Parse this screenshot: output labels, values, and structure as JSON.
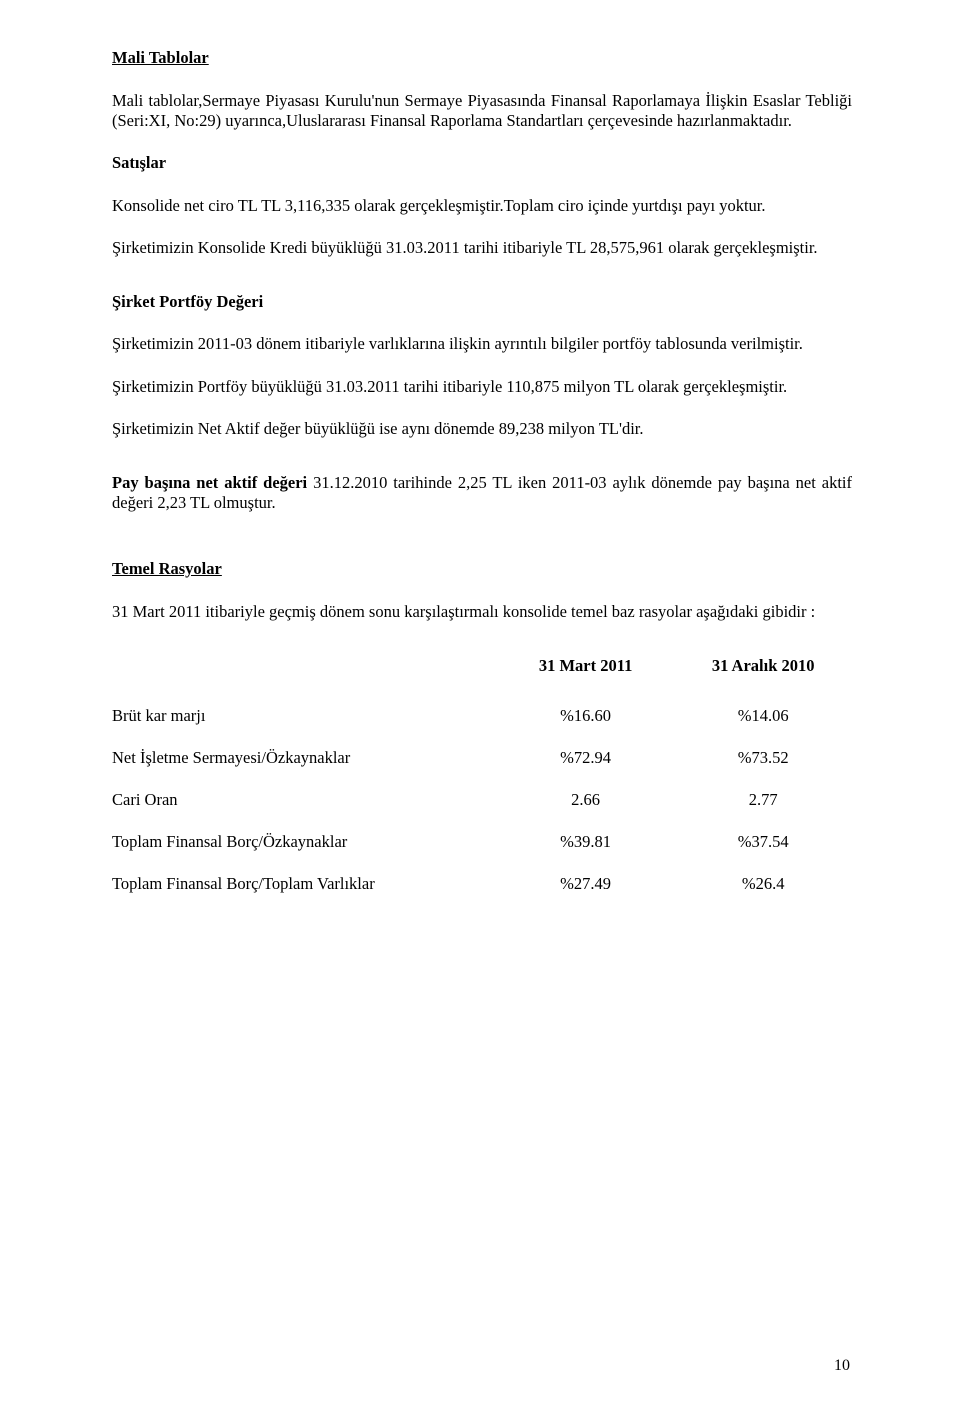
{
  "sections": {
    "mali_tablolar": {
      "title": "Mali Tablolar",
      "p1": "Mali tablolar,Sermaye Piyasası Kurulu'nun Sermaye Piyasasında Finansal Raporlamaya İlişkin Esaslar Tebliği (Seri:XI, No:29) uyarınca,Uluslararası Finansal Raporlama Standartları çerçevesinde hazırlanmaktadır."
    },
    "satislar": {
      "title": "Satışlar",
      "p1": "Konsolide net ciro TL TL 3,116,335 olarak gerçekleşmiştir.Toplam ciro içinde yurtdışı payı yoktur.",
      "p2": "Şirketimizin Konsolide Kredi büyüklüğü 31.03.2011 tarihi itibariyle TL 28,575,961 olarak gerçekleşmiştir."
    },
    "portfoy": {
      "title": "Şirket Portföy Değeri",
      "p1": "Şirketimizin 2011-03 dönem itibariyle  varlıklarına ilişkin ayrıntılı bilgiler portföy tablosunda verilmiştir.",
      "p2": "Şirketimizin Portföy büyüklüğü 31.03.2011 tarihi itibariyle 110,875 milyon TL olarak gerçekleşmiştir.",
      "p3": "Şirketimizin Net Aktif değer büyüklüğü  ise aynı dönemde 89,238  milyon  TL'dir."
    },
    "pay": {
      "label": "Pay başına net aktif değeri",
      "rest": " 31.12.2010 tarihinde 2,25 TL iken 2011-03 aylık dönemde pay başına net aktif değeri  2,23 TL olmuştur."
    },
    "rasyolar": {
      "title": "Temel Rasyolar",
      "intro": "31 Mart 2011 itibariyle geçmiş dönem sonu karşılaştırmalı konsolide temel baz rasyolar aşağıdaki gibidir :",
      "col1": "31 Mart 2011",
      "col2": "31 Aralık 2010",
      "rows": [
        {
          "label": "Brüt kar marjı",
          "v1": "%16.60",
          "v2": "%14.06"
        },
        {
          "label": "Net İşletme Sermayesi/Özkaynaklar",
          "v1": "%72.94",
          "v2": "%73.52"
        },
        {
          "label": "Cari Oran",
          "v1": "2.66",
          "v2": "2.77"
        },
        {
          "label": "Toplam Finansal Borç/Özkaynaklar",
          "v1": "%39.81",
          "v2": "%37.54"
        },
        {
          "label": "Toplam Finansal Borç/Toplam Varlıklar",
          "v1": "%27.49",
          "v2": "%26.4"
        }
      ]
    }
  },
  "page_number": "10",
  "colors": {
    "text": "#000000",
    "background": "#ffffff"
  },
  "typography": {
    "body_pt": 12.4,
    "family": "Times New Roman"
  }
}
